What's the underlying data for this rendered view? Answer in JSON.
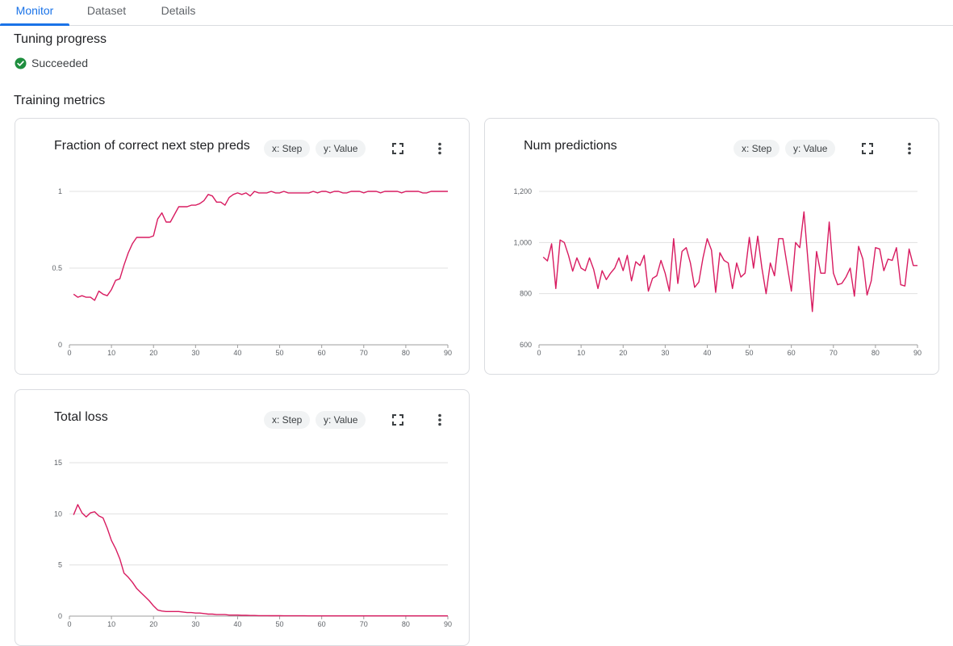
{
  "tabs": [
    {
      "label": "Monitor",
      "active": true
    },
    {
      "label": "Dataset",
      "active": false
    },
    {
      "label": "Details",
      "active": false
    }
  ],
  "tuning": {
    "title": "Tuning progress",
    "status": "Succeeded",
    "status_color": "#1e8e3e"
  },
  "metrics_title": "Training metrics",
  "line_color": "#d81b60",
  "chart_data": [
    {
      "type": "line",
      "title": "Fraction of correct next step preds",
      "x_chip": "x: Step",
      "y_chip": "y: Value",
      "xlim": [
        0,
        90
      ],
      "ylim": [
        0,
        1
      ],
      "xticks": [
        0,
        10,
        20,
        30,
        40,
        50,
        60,
        70,
        80,
        90
      ],
      "yticks": [
        0,
        0.5,
        1
      ],
      "ytick_labels": [
        "0",
        "0.5",
        "1"
      ],
      "grid": true,
      "x": [
        1,
        2,
        3,
        4,
        5,
        6,
        7,
        8,
        9,
        10,
        11,
        12,
        13,
        14,
        15,
        16,
        17,
        18,
        19,
        20,
        21,
        22,
        23,
        24,
        25,
        26,
        27,
        28,
        29,
        30,
        31,
        32,
        33,
        34,
        35,
        36,
        37,
        38,
        39,
        40,
        41,
        42,
        43,
        44,
        45,
        46,
        47,
        48,
        49,
        50,
        51,
        52,
        53,
        54,
        55,
        56,
        57,
        58,
        59,
        60,
        61,
        62,
        63,
        64,
        65,
        66,
        67,
        68,
        69,
        70,
        71,
        72,
        73,
        74,
        75,
        76,
        77,
        78,
        79,
        80,
        81,
        82,
        83,
        84,
        85,
        86,
        87,
        88,
        89,
        90
      ],
      "y": [
        0.33,
        0.31,
        0.32,
        0.31,
        0.31,
        0.29,
        0.35,
        0.33,
        0.32,
        0.36,
        0.42,
        0.43,
        0.52,
        0.6,
        0.66,
        0.7,
        0.7,
        0.7,
        0.7,
        0.71,
        0.82,
        0.86,
        0.8,
        0.8,
        0.85,
        0.9,
        0.9,
        0.9,
        0.91,
        0.91,
        0.92,
        0.94,
        0.98,
        0.97,
        0.93,
        0.93,
        0.91,
        0.96,
        0.98,
        0.99,
        0.98,
        0.99,
        0.97,
        1.0,
        0.99,
        0.99,
        0.99,
        1.0,
        0.99,
        0.99,
        1.0,
        0.99,
        0.99,
        0.99,
        0.99,
        0.99,
        0.99,
        1.0,
        0.99,
        1.0,
        1.0,
        0.99,
        1.0,
        1.0,
        0.99,
        0.99,
        1.0,
        1.0,
        1.0,
        0.99,
        1.0,
        1.0,
        1.0,
        0.99,
        1.0,
        1.0,
        1.0,
        1.0,
        0.99,
        1.0,
        1.0,
        1.0,
        1.0,
        0.99,
        0.99,
        1.0,
        1.0,
        1.0,
        1.0,
        1.0
      ]
    },
    {
      "type": "line",
      "title": "Num predictions",
      "x_chip": "x: Step",
      "y_chip": "y: Value",
      "xlim": [
        0,
        90
      ],
      "ylim": [
        600,
        1200
      ],
      "xticks": [
        0,
        10,
        20,
        30,
        40,
        50,
        60,
        70,
        80,
        90
      ],
      "yticks": [
        600,
        800,
        1000,
        1200
      ],
      "ytick_labels": [
        "600",
        "800",
        "1,000",
        "1,200"
      ],
      "grid": true,
      "x": [
        1,
        2,
        3,
        4,
        5,
        6,
        7,
        8,
        9,
        10,
        11,
        12,
        13,
        14,
        15,
        16,
        17,
        18,
        19,
        20,
        21,
        22,
        23,
        24,
        25,
        26,
        27,
        28,
        29,
        30,
        31,
        32,
        33,
        34,
        35,
        36,
        37,
        38,
        39,
        40,
        41,
        42,
        43,
        44,
        45,
        46,
        47,
        48,
        49,
        50,
        51,
        52,
        53,
        54,
        55,
        56,
        57,
        58,
        59,
        60,
        61,
        62,
        63,
        64,
        65,
        66,
        67,
        68,
        69,
        70,
        71,
        72,
        73,
        74,
        75,
        76,
        77,
        78,
        79,
        80,
        81,
        82,
        83,
        84,
        85,
        86,
        87,
        88,
        89,
        90
      ],
      "y": [
        943,
        928,
        995,
        820,
        1010,
        1000,
        950,
        888,
        940,
        900,
        890,
        940,
        895,
        820,
        890,
        855,
        880,
        900,
        940,
        890,
        950,
        850,
        925,
        910,
        950,
        810,
        860,
        870,
        930,
        880,
        810,
        1015,
        840,
        965,
        980,
        920,
        825,
        845,
        940,
        1015,
        970,
        805,
        960,
        930,
        920,
        820,
        920,
        865,
        880,
        1020,
        900,
        1025,
        900,
        800,
        920,
        870,
        1015,
        1015,
        910,
        810,
        1000,
        980,
        1120,
        920,
        730,
        965,
        880,
        880,
        1080,
        880,
        835,
        840,
        865,
        900,
        790,
        985,
        935,
        795,
        850,
        980,
        975,
        890,
        935,
        930,
        980,
        835,
        830,
        975,
        910,
        910
      ]
    },
    {
      "type": "line",
      "title": "Total loss",
      "x_chip": "x: Step",
      "y_chip": "y: Value",
      "xlim": [
        0,
        90
      ],
      "ylim": [
        0,
        15
      ],
      "xticks": [
        0,
        10,
        20,
        30,
        40,
        50,
        60,
        70,
        80,
        90
      ],
      "yticks": [
        0,
        5,
        10,
        15
      ],
      "ytick_labels": [
        "0",
        "5",
        "10",
        "15"
      ],
      "grid": true,
      "x": [
        1,
        2,
        3,
        4,
        5,
        6,
        7,
        8,
        9,
        10,
        11,
        12,
        13,
        14,
        15,
        16,
        17,
        18,
        19,
        20,
        21,
        22,
        23,
        24,
        25,
        26,
        27,
        28,
        29,
        30,
        31,
        32,
        33,
        34,
        35,
        36,
        37,
        38,
        39,
        40,
        41,
        42,
        43,
        44,
        45,
        46,
        47,
        48,
        49,
        50,
        51,
        52,
        53,
        54,
        55,
        56,
        57,
        58,
        59,
        60,
        61,
        62,
        63,
        64,
        65,
        66,
        67,
        68,
        69,
        70,
        71,
        72,
        73,
        74,
        75,
        76,
        77,
        78,
        79,
        80,
        81,
        82,
        83,
        84,
        85,
        86,
        87,
        88,
        89,
        90
      ],
      "y": [
        9.9,
        10.9,
        10.1,
        9.7,
        10.1,
        10.2,
        9.8,
        9.6,
        8.6,
        7.4,
        6.6,
        5.6,
        4.2,
        3.8,
        3.3,
        2.7,
        2.3,
        1.9,
        1.5,
        1.0,
        0.6,
        0.5,
        0.45,
        0.45,
        0.45,
        0.45,
        0.4,
        0.35,
        0.35,
        0.3,
        0.3,
        0.25,
        0.2,
        0.2,
        0.15,
        0.15,
        0.15,
        0.1,
        0.1,
        0.1,
        0.08,
        0.08,
        0.06,
        0.06,
        0.05,
        0.05,
        0.05,
        0.04,
        0.04,
        0.04,
        0.03,
        0.03,
        0.03,
        0.03,
        0.03,
        0.03,
        0.02,
        0.02,
        0.02,
        0.02,
        0.02,
        0.02,
        0.02,
        0.02,
        0.02,
        0.02,
        0.02,
        0.02,
        0.02,
        0.02,
        0.02,
        0.02,
        0.02,
        0.02,
        0.02,
        0.02,
        0.02,
        0.02,
        0.02,
        0.02,
        0.02,
        0.02,
        0.02,
        0.02,
        0.02,
        0.02,
        0.02,
        0.02,
        0.02,
        0.02
      ]
    }
  ]
}
